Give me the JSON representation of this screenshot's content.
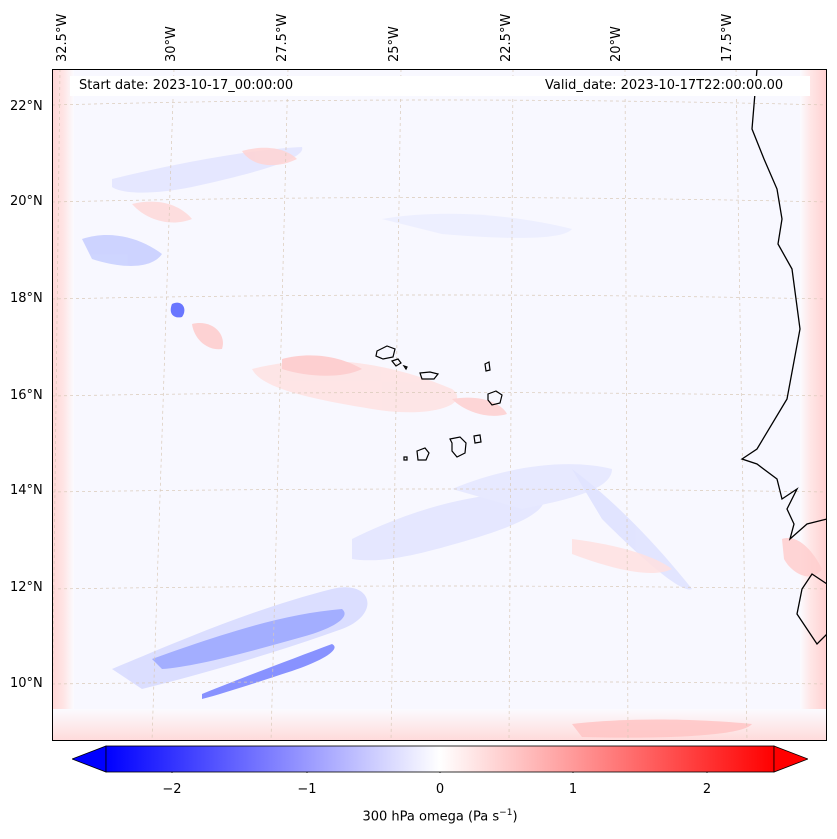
{
  "map": {
    "start_date": "Start date: 2023-10-17_00:00:00",
    "valid_date": "Valid_date: 2023-10-17T22:00:00.00",
    "lon_labels": [
      "32.5°W",
      "30°W",
      "27.5°W",
      "25°W",
      "22.5°W",
      "20°W",
      "17.5°W"
    ],
    "lat_labels": [
      "22°N",
      "20°N",
      "18°N",
      "16°N",
      "14°N",
      "12°N",
      "10°N"
    ],
    "coastline": "black",
    "field": "300 hPa omega"
  },
  "colorbar": {
    "ticks": [
      "−2",
      "−1",
      "0",
      "1",
      "2"
    ],
    "label": "300 hPa omega (Pa s",
    "label_exp": "−1",
    "label_end": ")",
    "cmap": "bwr",
    "low_color": "#0000ff",
    "mid_color": "#ffffff",
    "high_color": "#ff0000"
  }
}
